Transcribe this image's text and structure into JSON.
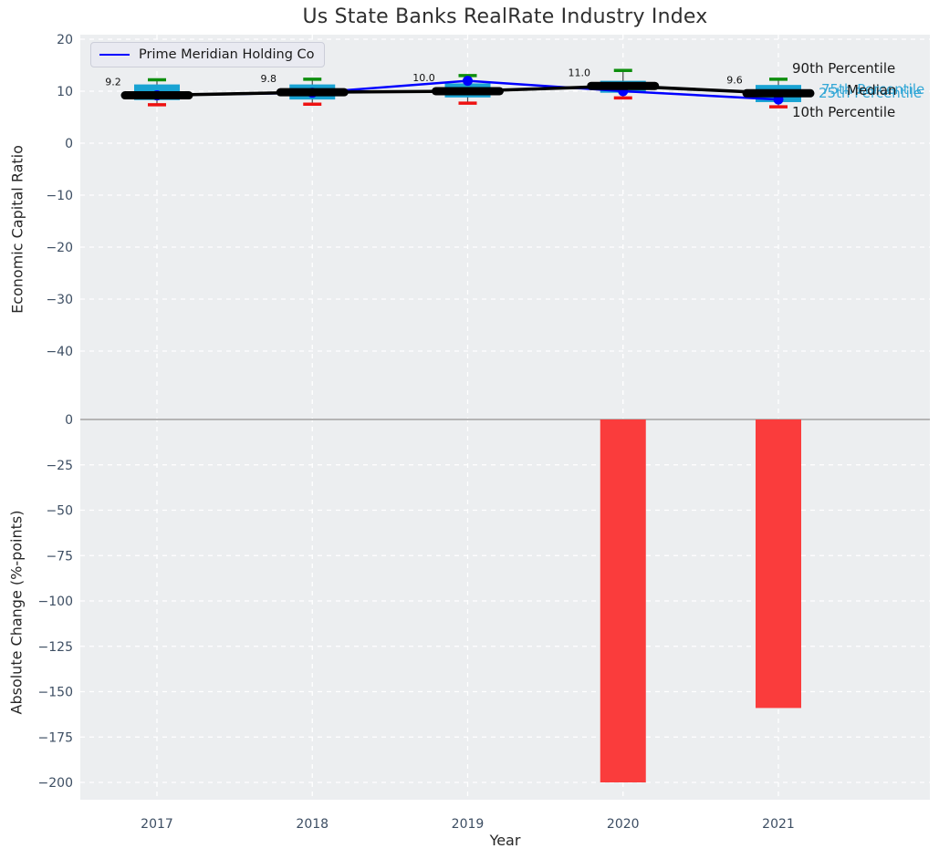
{
  "title": "Us State Banks RealRate Industry Index",
  "legend": {
    "label": "Prime Meridian Holding Co"
  },
  "annotations": {
    "p90": "90th Percentile",
    "p75": "75th Percentile",
    "median": "Median",
    "p25": "25th Percentile",
    "p10": "10th Percentile"
  },
  "colors": {
    "plot_bg": "#eceef0",
    "grid": "#ffffff",
    "box_fill": "#19a3d3",
    "cyan_text": "#33a7d6",
    "bar_red": "#fa3c3c",
    "cap_green": "#0e8e0e",
    "cap_red": "#ee1111",
    "company_blue": "#0000ff",
    "median_black": "#000000",
    "zero_line": "#b5b5b5",
    "tick_color": "#3d4e63",
    "label_color": "#262626"
  },
  "chart_data": [
    {
      "type": "box",
      "title": "Us State Banks RealRate Industry Index",
      "ylabel": "Economic Capital Ratio",
      "categories": [
        "2017",
        "2018",
        "2019",
        "2020",
        "2021"
      ],
      "yticks": [
        20,
        10,
        0,
        -10,
        -20,
        -30,
        -40
      ],
      "ylim": [
        -51,
        21
      ],
      "grid": true,
      "legend_position": "upper left",
      "series": [
        {
          "name": "90th Percentile",
          "values": [
            12.2,
            12.3,
            13.0,
            14.0,
            12.3
          ]
        },
        {
          "name": "75th Percentile",
          "values": [
            11.3,
            11.3,
            11.5,
            12.0,
            11.2
          ]
        },
        {
          "name": "Median",
          "values": [
            9.2,
            9.8,
            10.0,
            11.0,
            9.6
          ]
        },
        {
          "name": "25th Percentile",
          "values": [
            8.3,
            8.4,
            8.8,
            9.7,
            7.9
          ]
        },
        {
          "name": "10th Percentile",
          "values": [
            7.4,
            7.5,
            7.7,
            8.7,
            7.0
          ]
        },
        {
          "name": "Prime Meridian Holding Co",
          "values": [
            9.2,
            9.7,
            12.0,
            10.0,
            8.4
          ]
        }
      ],
      "median_labels": [
        "9.2",
        "9.8",
        "10.0",
        "11.0",
        "9.6"
      ]
    },
    {
      "type": "bar",
      "ylabel": "Absolute Change (%-points)",
      "xlabel": "Year",
      "categories": [
        "2017",
        "2018",
        "2019",
        "2020",
        "2021"
      ],
      "values": [
        0,
        0,
        0,
        -200,
        -159
      ],
      "yticks": [
        0,
        -25,
        -50,
        -75,
        -100,
        -125,
        -150,
        -175,
        -200
      ],
      "ylim": [
        -209,
        6
      ],
      "grid": true
    }
  ]
}
